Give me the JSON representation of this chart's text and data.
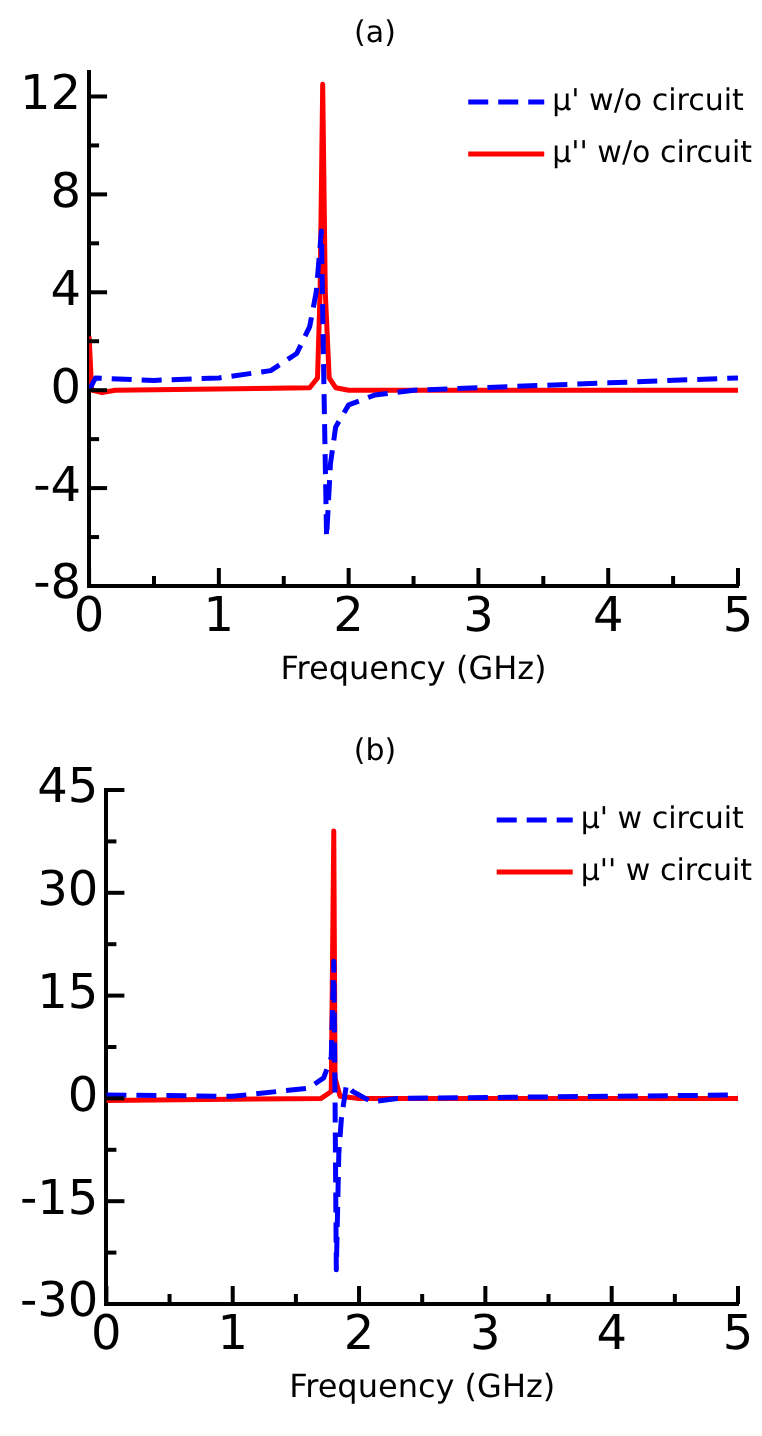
{
  "chart_data": [
    {
      "type": "line",
      "title": "(a)",
      "xlabel": "Frequency (GHz)",
      "xlim": [
        0,
        5
      ],
      "ylim": [
        -8,
        13
      ],
      "xticks": [
        0,
        {
          "value": 0.5,
          "label": null
        },
        1,
        {
          "value": 1.5,
          "label": null
        },
        2,
        {
          "value": 2.5,
          "label": null
        },
        3,
        {
          "value": 3.5,
          "label": null
        },
        4,
        {
          "value": 4.5,
          "label": null
        },
        5
      ],
      "yticks": [
        -8,
        {
          "value": -6,
          "label": null
        },
        -4,
        {
          "value": -2,
          "label": null
        },
        0,
        {
          "value": 2,
          "label": null
        },
        4,
        {
          "value": 6,
          "label": null
        },
        8,
        {
          "value": 10,
          "label": null
        },
        12
      ],
      "grid": false,
      "legend": "top right",
      "marker": "none",
      "series": [
        {
          "name": "μ' w/o circuit",
          "color": "#0000ff",
          "line_style": "dashed",
          "x": [
            0,
            0.05,
            0.5,
            1.0,
            1.4,
            1.6,
            1.7,
            1.75,
            1.79,
            1.81,
            1.83,
            1.86,
            1.9,
            2.0,
            2.2,
            2.5,
            3,
            4,
            5
          ],
          "values": [
            0,
            0.5,
            0.4,
            0.5,
            0.8,
            1.5,
            2.6,
            4,
            6.5,
            0,
            -6,
            -3,
            -1.5,
            -0.6,
            -0.2,
            0,
            0.1,
            0.3,
            0.5
          ]
        },
        {
          "name": "μ'' w/o circuit",
          "color": "#ff0000",
          "line_style": "solid",
          "x": [
            0,
            0.02,
            0.1,
            0.2,
            1.7,
            1.76,
            1.78,
            1.8,
            1.82,
            1.85,
            1.9,
            2.0,
            5
          ],
          "values": [
            2.2,
            0,
            -0.1,
            0,
            0.1,
            0.5,
            4,
            12.5,
            4,
            0.5,
            0.1,
            0,
            0
          ]
        }
      ]
    },
    {
      "type": "line",
      "title": "(b)",
      "xlabel": "Frequency (GHz)",
      "xlim": [
        0,
        5
      ],
      "ylim": [
        -30,
        45
      ],
      "xticks": [
        0,
        {
          "value": 0.5,
          "label": null
        },
        1,
        {
          "value": 1.5,
          "label": null
        },
        2,
        {
          "value": 2.5,
          "label": null
        },
        3,
        {
          "value": 3.5,
          "label": null
        },
        4,
        {
          "value": 4.5,
          "label": null
        },
        5
      ],
      "yticks": [
        -30,
        {
          "value": -22.5,
          "label": null
        },
        -15,
        {
          "value": -7.5,
          "label": null
        },
        0,
        {
          "value": 7.5,
          "label": null
        },
        15,
        {
          "value": 22.5,
          "label": null
        },
        30,
        {
          "value": 37.5,
          "label": null
        },
        45
      ],
      "grid": false,
      "legend": "top right",
      "marker": "none",
      "series": [
        {
          "name": "μ' w circuit",
          "color": "#0000ff",
          "line_style": "dashed",
          "x": [
            0,
            1,
            1.6,
            1.72,
            1.78,
            1.8,
            1.81,
            1.82,
            1.84,
            1.86,
            1.9,
            1.95,
            2.1,
            2.3,
            5
          ],
          "values": [
            0.5,
            0.3,
            1.5,
            3,
            6,
            20,
            0,
            -25,
            -8,
            -3,
            2,
            1,
            -0.5,
            0,
            0.5
          ]
        },
        {
          "name": "μ'' w circuit",
          "color": "#ff0000",
          "line_style": "solid",
          "x": [
            0,
            1.7,
            1.78,
            1.8,
            1.81,
            1.85,
            2.0,
            5
          ],
          "values": [
            -0.3,
            0,
            1,
            39,
            3,
            0.3,
            0,
            0
          ]
        }
      ]
    }
  ]
}
